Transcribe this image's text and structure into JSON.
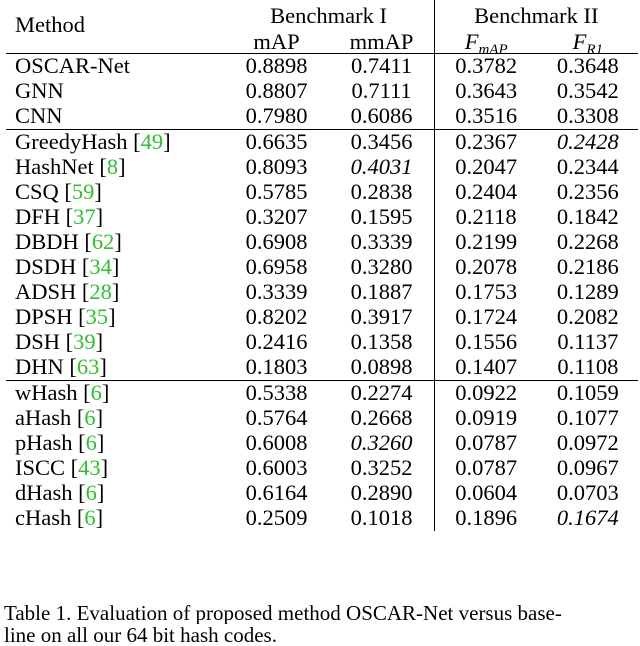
{
  "header": {
    "method": "Method",
    "bench1": "Benchmark I",
    "bench2": "Benchmark II",
    "b1_col1": "mAP",
    "b1_col2": "mmAP",
    "b2_col1_base": "F",
    "b2_col1_sub": "mAP",
    "b2_col2_base": "F",
    "b2_col2_sub": "R1"
  },
  "groups": [
    {
      "rows": [
        {
          "name": "OSCAR-Net",
          "ref": "",
          "v": [
            "0.8898",
            "0.7411",
            "0.3782",
            "0.3648"
          ],
          "bold": [
            true,
            true,
            true,
            true
          ],
          "italic": [
            false,
            false,
            false,
            false
          ]
        },
        {
          "name": "GNN",
          "ref": "",
          "v": [
            "0.8807",
            "0.7111",
            "0.3643",
            "0.3542"
          ],
          "bold": [
            false,
            false,
            false,
            false
          ],
          "italic": [
            false,
            false,
            false,
            false
          ]
        },
        {
          "name": "CNN",
          "ref": "",
          "v": [
            "0.7980",
            "0.6086",
            "0.3516",
            "0.3308"
          ],
          "bold": [
            false,
            false,
            false,
            false
          ],
          "italic": [
            false,
            false,
            false,
            false
          ]
        }
      ]
    },
    {
      "rows": [
        {
          "name": "GreedyHash",
          "ref": "49",
          "v": [
            "0.6635",
            "0.3456",
            "0.2367",
            "0.2428"
          ],
          "bold": [
            false,
            false,
            false,
            false
          ],
          "italic": [
            false,
            false,
            false,
            true
          ]
        },
        {
          "name": "HashNet",
          "ref": "8",
          "v": [
            "0.8093",
            "0.4031",
            "0.2047",
            "0.2344"
          ],
          "bold": [
            false,
            false,
            false,
            false
          ],
          "italic": [
            false,
            true,
            false,
            false
          ]
        },
        {
          "name": "CSQ",
          "ref": "59",
          "v": [
            "0.5785",
            "0.2838",
            "0.2404",
            "0.2356"
          ],
          "bold": [
            false,
            false,
            false,
            false
          ],
          "italic": [
            false,
            false,
            false,
            false
          ]
        },
        {
          "name": "DFH",
          "ref": "37",
          "v": [
            "0.3207",
            "0.1595",
            "0.2118",
            "0.1842"
          ],
          "bold": [
            false,
            false,
            false,
            false
          ],
          "italic": [
            false,
            false,
            false,
            false
          ]
        },
        {
          "name": "DBDH",
          "ref": "62",
          "v": [
            "0.6908",
            "0.3339",
            "0.2199",
            "0.2268"
          ],
          "bold": [
            false,
            false,
            false,
            false
          ],
          "italic": [
            false,
            false,
            false,
            false
          ]
        },
        {
          "name": "DSDH",
          "ref": "34",
          "v": [
            "0.6958",
            "0.3280",
            "0.2078",
            "0.2186"
          ],
          "bold": [
            false,
            false,
            false,
            false
          ],
          "italic": [
            false,
            false,
            false,
            false
          ]
        },
        {
          "name": "ADSH",
          "ref": "28",
          "v": [
            "0.3339",
            "0.1887",
            "0.1753",
            "0.1289"
          ],
          "bold": [
            false,
            false,
            false,
            false
          ],
          "italic": [
            false,
            false,
            false,
            false
          ]
        },
        {
          "name": "DPSH",
          "ref": "35",
          "v": [
            "0.8202",
            "0.3917",
            "0.1724",
            "0.2082"
          ],
          "bold": [
            false,
            false,
            false,
            false
          ],
          "italic": [
            false,
            false,
            false,
            false
          ]
        },
        {
          "name": "DSH",
          "ref": "39",
          "v": [
            "0.2416",
            "0.1358",
            "0.1556",
            "0.1137"
          ],
          "bold": [
            false,
            false,
            false,
            false
          ],
          "italic": [
            false,
            false,
            false,
            false
          ]
        },
        {
          "name": "DHN",
          "ref": "63",
          "v": [
            "0.1803",
            "0.0898",
            "0.1407",
            "0.1108"
          ],
          "bold": [
            false,
            false,
            false,
            false
          ],
          "italic": [
            false,
            false,
            false,
            false
          ]
        }
      ]
    },
    {
      "rows": [
        {
          "name": "wHash",
          "ref": "6",
          "v": [
            "0.5338",
            "0.2274",
            "0.0922",
            "0.1059"
          ],
          "bold": [
            false,
            false,
            false,
            false
          ],
          "italic": [
            false,
            false,
            false,
            false
          ]
        },
        {
          "name": "aHash",
          "ref": "6",
          "v": [
            "0.5764",
            "0.2668",
            "0.0919",
            "0.1077"
          ],
          "bold": [
            false,
            false,
            false,
            false
          ],
          "italic": [
            false,
            false,
            false,
            false
          ]
        },
        {
          "name": "pHash",
          "ref": "6",
          "v": [
            "0.6008",
            "0.3260",
            "0.0787",
            "0.0972"
          ],
          "bold": [
            false,
            false,
            false,
            false
          ],
          "italic": [
            false,
            true,
            false,
            false
          ]
        },
        {
          "name": "ISCC",
          "ref": "43",
          "v": [
            "0.6003",
            "0.3252",
            "0.0787",
            "0.0967"
          ],
          "bold": [
            false,
            false,
            false,
            false
          ],
          "italic": [
            false,
            false,
            false,
            false
          ]
        },
        {
          "name": "dHash",
          "ref": "6",
          "v": [
            "0.6164",
            "0.2890",
            "0.0604",
            "0.0703"
          ],
          "bold": [
            false,
            false,
            false,
            false
          ],
          "italic": [
            false,
            false,
            false,
            false
          ]
        },
        {
          "name": "cHash",
          "ref": "6",
          "v": [
            "0.2509",
            "0.1018",
            "0.1896",
            "0.1674"
          ],
          "bold": [
            false,
            false,
            false,
            false
          ],
          "italic": [
            false,
            false,
            false,
            true
          ]
        }
      ]
    }
  ],
  "caption": {
    "line1": "Table 1. Evaluation of proposed method OSCAR-Net versus base-",
    "line2": "line on all our 64 bit hash codes."
  },
  "colors": {
    "reference_link": "#2fbf2f",
    "text": "#000000",
    "background": "#ffffff"
  }
}
